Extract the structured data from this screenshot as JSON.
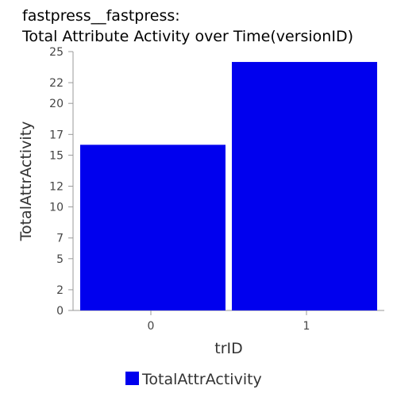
{
  "title": {
    "line1": "fastpress__fastpress:",
    "line2": "Total Attribute Activity over Time(versionID)"
  },
  "chart_data": {
    "type": "bar",
    "categories": [
      "0",
      "1"
    ],
    "series": [
      {
        "name": "TotalAttrActivity",
        "values": [
          16,
          24
        ]
      }
    ],
    "xlabel": "trID",
    "ylabel": "TotalAttrActivity",
    "ylim": [
      0,
      25
    ],
    "yticks": [
      0,
      2,
      5,
      7,
      10,
      12,
      15,
      17,
      20,
      22,
      25
    ],
    "grid": false,
    "legend_position": "bottom",
    "colors": {
      "series": "#0000ee"
    }
  }
}
